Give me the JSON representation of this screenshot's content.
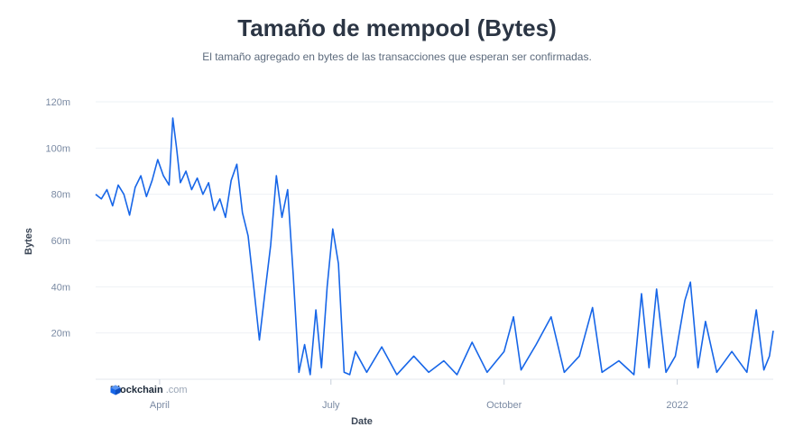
{
  "chart_data": {
    "type": "line",
    "title": "Tamaño de mempool (Bytes)",
    "subtitle": "El tamaño agregado en bytes de las transacciones que esperan ser confirmadas.",
    "xlabel": "Date",
    "ylabel": "Bytes",
    "ylim": [
      0,
      120000000
    ],
    "y_ticks": [
      {
        "value": 20000000,
        "label": "20m"
      },
      {
        "value": 40000000,
        "label": "40m"
      },
      {
        "value": 60000000,
        "label": "60m"
      },
      {
        "value": 80000000,
        "label": "80m"
      },
      {
        "value": 100000000,
        "label": "100m"
      },
      {
        "value": 120000000,
        "label": "120m"
      }
    ],
    "xlim": [
      "2021-02-26",
      "2022-02-21"
    ],
    "x_ticks": [
      {
        "date": "2021-04-01",
        "label": "April"
      },
      {
        "date": "2021-07-01",
        "label": "July"
      },
      {
        "date": "2021-10-01",
        "label": "October"
      },
      {
        "date": "2022-01-01",
        "label": "2022"
      }
    ],
    "grid": true,
    "series": [
      {
        "color": "#1766e8",
        "points": [
          [
            "2021-02-26",
            80000000
          ],
          [
            "2021-03-01",
            78000000
          ],
          [
            "2021-03-04",
            82000000
          ],
          [
            "2021-03-07",
            75000000
          ],
          [
            "2021-03-10",
            84000000
          ],
          [
            "2021-03-13",
            80000000
          ],
          [
            "2021-03-16",
            71000000
          ],
          [
            "2021-03-19",
            83000000
          ],
          [
            "2021-03-22",
            88000000
          ],
          [
            "2021-03-25",
            79000000
          ],
          [
            "2021-03-28",
            86000000
          ],
          [
            "2021-03-31",
            95000000
          ],
          [
            "2021-04-03",
            88000000
          ],
          [
            "2021-04-06",
            84000000
          ],
          [
            "2021-04-08",
            113000000
          ],
          [
            "2021-04-10",
            100000000
          ],
          [
            "2021-04-12",
            85000000
          ],
          [
            "2021-04-15",
            90000000
          ],
          [
            "2021-04-18",
            82000000
          ],
          [
            "2021-04-21",
            87000000
          ],
          [
            "2021-04-24",
            80000000
          ],
          [
            "2021-04-27",
            85000000
          ],
          [
            "2021-04-30",
            73000000
          ],
          [
            "2021-05-03",
            78000000
          ],
          [
            "2021-05-06",
            70000000
          ],
          [
            "2021-05-09",
            86000000
          ],
          [
            "2021-05-12",
            93000000
          ],
          [
            "2021-05-15",
            72000000
          ],
          [
            "2021-05-18",
            62000000
          ],
          [
            "2021-05-21",
            40000000
          ],
          [
            "2021-05-24",
            17000000
          ],
          [
            "2021-05-27",
            38000000
          ],
          [
            "2021-05-30",
            58000000
          ],
          [
            "2021-06-02",
            88000000
          ],
          [
            "2021-06-05",
            70000000
          ],
          [
            "2021-06-08",
            82000000
          ],
          [
            "2021-06-11",
            45000000
          ],
          [
            "2021-06-14",
            3000000
          ],
          [
            "2021-06-17",
            15000000
          ],
          [
            "2021-06-20",
            2000000
          ],
          [
            "2021-06-23",
            30000000
          ],
          [
            "2021-06-26",
            5000000
          ],
          [
            "2021-06-29",
            40000000
          ],
          [
            "2021-07-02",
            65000000
          ],
          [
            "2021-07-05",
            50000000
          ],
          [
            "2021-07-08",
            3000000
          ],
          [
            "2021-07-11",
            2000000
          ],
          [
            "2021-07-14",
            12000000
          ],
          [
            "2021-07-20",
            3000000
          ],
          [
            "2021-07-28",
            14000000
          ],
          [
            "2021-08-05",
            2000000
          ],
          [
            "2021-08-14",
            10000000
          ],
          [
            "2021-08-22",
            3000000
          ],
          [
            "2021-08-30",
            8000000
          ],
          [
            "2021-09-06",
            2000000
          ],
          [
            "2021-09-14",
            16000000
          ],
          [
            "2021-09-22",
            3000000
          ],
          [
            "2021-10-01",
            12000000
          ],
          [
            "2021-10-06",
            27000000
          ],
          [
            "2021-10-10",
            4000000
          ],
          [
            "2021-10-18",
            15000000
          ],
          [
            "2021-10-26",
            27000000
          ],
          [
            "2021-11-02",
            3000000
          ],
          [
            "2021-11-10",
            10000000
          ],
          [
            "2021-11-17",
            31000000
          ],
          [
            "2021-11-22",
            3000000
          ],
          [
            "2021-12-01",
            8000000
          ],
          [
            "2021-12-09",
            2000000
          ],
          [
            "2021-12-13",
            37000000
          ],
          [
            "2021-12-17",
            5000000
          ],
          [
            "2021-12-21",
            39000000
          ],
          [
            "2021-12-26",
            3000000
          ],
          [
            "2021-12-31",
            10000000
          ],
          [
            "2022-01-05",
            34000000
          ],
          [
            "2022-01-08",
            42000000
          ],
          [
            "2022-01-12",
            5000000
          ],
          [
            "2022-01-16",
            25000000
          ],
          [
            "2022-01-22",
            3000000
          ],
          [
            "2022-01-30",
            12000000
          ],
          [
            "2022-02-07",
            3000000
          ],
          [
            "2022-02-12",
            30000000
          ],
          [
            "2022-02-16",
            4000000
          ],
          [
            "2022-02-19",
            10000000
          ],
          [
            "2022-02-21",
            21000000
          ]
        ]
      }
    ]
  },
  "branding": {
    "name": "Blockchain",
    "suffix": ".com",
    "icon": "cube-icon",
    "color": "#1766e8"
  }
}
